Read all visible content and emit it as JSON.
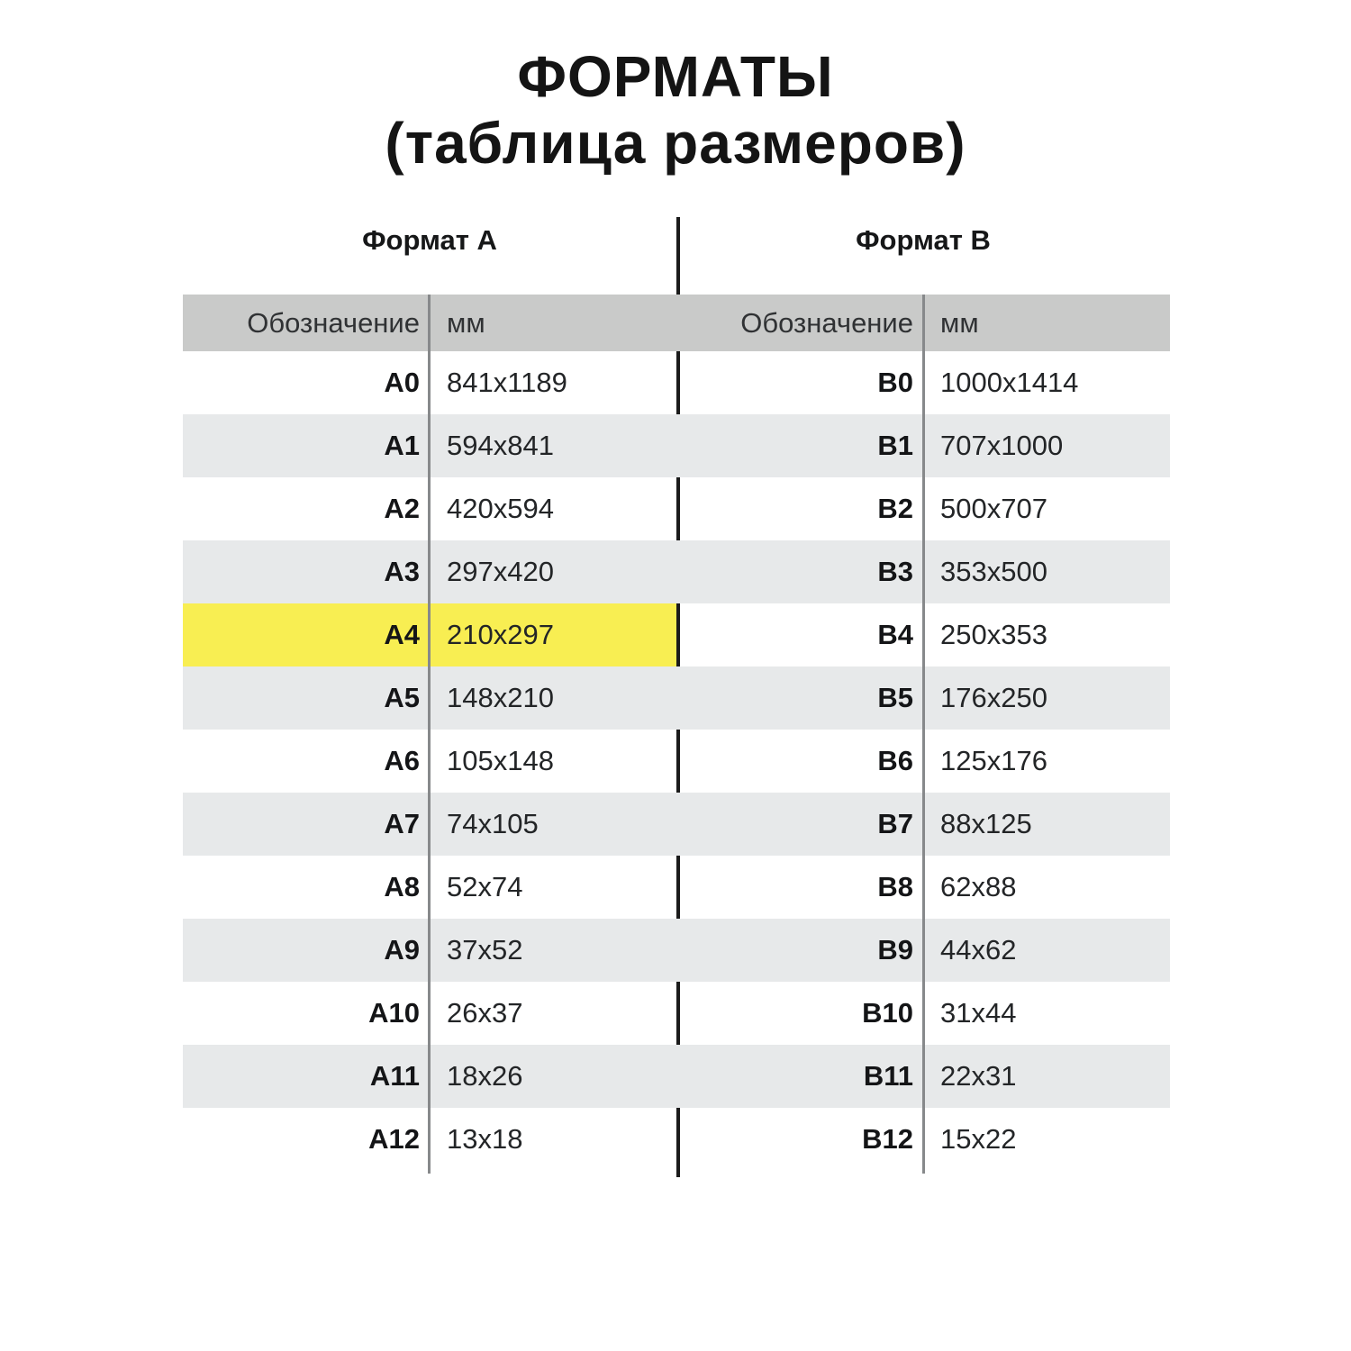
{
  "chart_data": {
    "type": "table",
    "title": "ФОРМАТЫ",
    "subtitle": "(таблица размеров)",
    "layout": {
      "arrangement": "two tables side by side separated by a vertical black rule",
      "zebra_striping": true,
      "highlighted_row_note": "A4 row highlighted yellow in left table only"
    },
    "tables": [
      {
        "name": "Формат А",
        "columns": [
          "Обозначение",
          "мм"
        ],
        "rows": [
          [
            "A0",
            "841x1189"
          ],
          [
            "A1",
            "594x841"
          ],
          [
            "A2",
            "420x594"
          ],
          [
            "A3",
            "297x420"
          ],
          [
            "A4",
            "210x297"
          ],
          [
            "A5",
            "148x210"
          ],
          [
            "A6",
            "105x148"
          ],
          [
            "A7",
            "74x105"
          ],
          [
            "A8",
            "52x74"
          ],
          [
            "A9",
            "37x52"
          ],
          [
            "A10",
            "26x37"
          ],
          [
            "A11",
            "18x26"
          ],
          [
            "A12",
            "13x18"
          ]
        ],
        "highlighted_row": "A4"
      },
      {
        "name": "Формат B",
        "columns": [
          "Обозначение",
          "мм"
        ],
        "rows": [
          [
            "B0",
            "1000x1414"
          ],
          [
            "B1",
            "707x1000"
          ],
          [
            "B2",
            "500x707"
          ],
          [
            "B3",
            "353x500"
          ],
          [
            "B4",
            "250x353"
          ],
          [
            "B5",
            "176x250"
          ],
          [
            "B6",
            "125x176"
          ],
          [
            "B7",
            "88x125"
          ],
          [
            "B8",
            "62x88"
          ],
          [
            "B9",
            "44x62"
          ],
          [
            "B10",
            "31x44"
          ],
          [
            "B11",
            "22x31"
          ],
          [
            "B12",
            "15x22"
          ]
        ],
        "highlighted_row": null
      }
    ],
    "colors": {
      "header_bg": "#c9cac9",
      "stripe_bg": "#e7e9ea",
      "highlight_bg": "#f8ee52",
      "text": "#1b1c1e",
      "muted_text": "#303234",
      "divider_black": "#1b1b1b",
      "divider_gray": "#87898b",
      "page_bg": "#ffffff"
    }
  }
}
